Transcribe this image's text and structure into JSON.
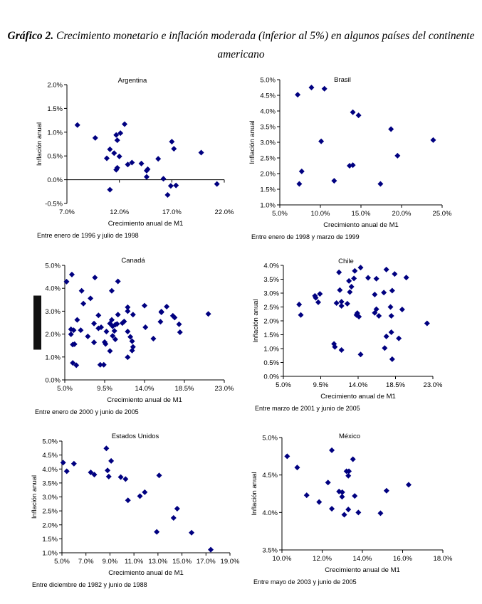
{
  "figure": {
    "label": "Gráfico 2.",
    "title": "Crecimiento monetario e inflación moderada (inferior al 5%) en algunos países del continente americano"
  },
  "colors": {
    "marker": "#000080",
    "axis": "#000000"
  },
  "chart_data": [
    {
      "type": "scatter",
      "title": "Argentina",
      "xlabel": "Crecimiento anual de M1",
      "ylabel": "Inflación anual",
      "note": "Entre enero de 1996 y julio de 1998",
      "xlim": [
        7,
        22
      ],
      "xticks": [
        7,
        12,
        17,
        22
      ],
      "xtick_labels": [
        "7.0%",
        "12.0%",
        "17.0%",
        "22.0%"
      ],
      "ylim": [
        -0.5,
        2.0
      ],
      "yticks": [
        -0.5,
        0,
        0.5,
        1.0,
        1.5,
        2.0
      ],
      "ytick_labels": [
        "-0.5%",
        "0.0%",
        "0.5%",
        "1.0%",
        "1.5%",
        "2.0%"
      ],
      "grid": false,
      "marker": "diamond",
      "points": [
        [
          8.0,
          1.15
        ],
        [
          9.7,
          0.88
        ],
        [
          12.5,
          1.17
        ],
        [
          12.1,
          0.98
        ],
        [
          11.7,
          0.94
        ],
        [
          11.8,
          0.83
        ],
        [
          11.1,
          0.64
        ],
        [
          10.8,
          0.45
        ],
        [
          11.5,
          0.56
        ],
        [
          12.0,
          0.49
        ],
        [
          11.8,
          0.25
        ],
        [
          11.7,
          0.21
        ],
        [
          11.1,
          -0.21
        ],
        [
          12.8,
          0.32
        ],
        [
          13.2,
          0.36
        ],
        [
          14.1,
          0.34
        ],
        [
          14.6,
          0.19
        ],
        [
          14.7,
          0.22
        ],
        [
          14.6,
          0.06
        ],
        [
          15.7,
          0.44
        ],
        [
          16.2,
          0.02
        ],
        [
          16.6,
          -0.32
        ],
        [
          16.9,
          -0.13
        ],
        [
          17.4,
          -0.12
        ],
        [
          17.0,
          0.8
        ],
        [
          17.2,
          0.65
        ],
        [
          19.8,
          0.57
        ],
        [
          21.3,
          -0.09
        ]
      ]
    },
    {
      "type": "scatter",
      "title": "Brasil",
      "xlabel": "Crecimiento anual de M1",
      "ylabel": "Inflación anual",
      "note": "Entre enero de 1998 y marzo de 1999",
      "xlim": [
        5,
        25
      ],
      "xticks": [
        5,
        10,
        15,
        20,
        25
      ],
      "xtick_labels": [
        "5.0%",
        "10.0%",
        "15.0%",
        "20.0%",
        "25.0%"
      ],
      "ylim": [
        1.0,
        5.0
      ],
      "yticks": [
        1.0,
        1.5,
        2.0,
        2.5,
        3.0,
        3.5,
        4.0,
        4.5,
        5.0
      ],
      "ytick_labels": [
        "1.0%",
        "1.5%",
        "2.0%",
        "2.5%",
        "3.0%",
        "3.5%",
        "4.0%",
        "4.5%",
        "5.0%"
      ],
      "grid": false,
      "marker": "diamond",
      "points": [
        [
          7.2,
          4.52
        ],
        [
          8.9,
          4.75
        ],
        [
          10.5,
          4.71
        ],
        [
          14.0,
          3.96
        ],
        [
          14.7,
          3.86
        ],
        [
          18.7,
          3.42
        ],
        [
          10.1,
          3.03
        ],
        [
          23.9,
          3.07
        ],
        [
          19.5,
          2.57
        ],
        [
          13.6,
          2.25
        ],
        [
          14.0,
          2.27
        ],
        [
          7.7,
          2.07
        ],
        [
          11.7,
          1.77
        ],
        [
          7.4,
          1.67
        ],
        [
          17.4,
          1.67
        ]
      ]
    },
    {
      "type": "scatter",
      "title": "Canadá",
      "xlabel": "Crecimiento anual de M1",
      "ylabel": "",
      "note": "Entre enero de 2000 y junio de 2005",
      "xlim": [
        5,
        23
      ],
      "xticks": [
        5,
        9.5,
        14,
        18.5,
        23
      ],
      "xtick_labels": [
        "5.0%",
        "9.5%",
        "14.0%",
        "18.5%",
        "23.0%"
      ],
      "ylim": [
        0,
        5.0
      ],
      "yticks": [
        0,
        1,
        2,
        3,
        4,
        5
      ],
      "ytick_labels": [
        "0.0%",
        "1.0%",
        "2.0%",
        "3.0%",
        "4.0%",
        "5.0%"
      ],
      "grid": false,
      "marker": "diamond",
      "points": [
        [
          5.2,
          4.29
        ],
        [
          5.8,
          4.6
        ],
        [
          8.4,
          4.47
        ],
        [
          11.0,
          4.3
        ],
        [
          6.9,
          3.89
        ],
        [
          10.3,
          3.89
        ],
        [
          7.9,
          3.56
        ],
        [
          7.1,
          3.33
        ],
        [
          14.0,
          3.24
        ],
        [
          16.5,
          3.2
        ],
        [
          12.1,
          3.17
        ],
        [
          12.1,
          3.0
        ],
        [
          15.9,
          2.98
        ],
        [
          15.9,
          2.95
        ],
        [
          21.2,
          2.88
        ],
        [
          12.7,
          2.85
        ],
        [
          11.0,
          2.85
        ],
        [
          8.8,
          2.82
        ],
        [
          17.2,
          2.8
        ],
        [
          17.4,
          2.72
        ],
        [
          6.4,
          2.62
        ],
        [
          10.3,
          2.62
        ],
        [
          15.8,
          2.54
        ],
        [
          11.7,
          2.55
        ],
        [
          11.5,
          2.48
        ],
        [
          8.3,
          2.46
        ],
        [
          10.1,
          2.46
        ],
        [
          10.9,
          2.44
        ],
        [
          10.7,
          2.41
        ],
        [
          17.9,
          2.43
        ],
        [
          10.4,
          2.34
        ],
        [
          14.1,
          2.3
        ],
        [
          9.1,
          2.3
        ],
        [
          8.8,
          2.25
        ],
        [
          5.7,
          2.21
        ],
        [
          6.0,
          2.17
        ],
        [
          6.8,
          2.17
        ],
        [
          10.6,
          2.14
        ],
        [
          9.7,
          2.11
        ],
        [
          12.1,
          2.11
        ],
        [
          18.0,
          2.08
        ],
        [
          5.7,
          1.99
        ],
        [
          7.6,
          1.9
        ],
        [
          10.4,
          1.92
        ],
        [
          12.4,
          1.88
        ],
        [
          15.0,
          1.8
        ],
        [
          10.7,
          1.77
        ],
        [
          12.6,
          1.69
        ],
        [
          8.3,
          1.64
        ],
        [
          9.5,
          1.65
        ],
        [
          9.6,
          1.57
        ],
        [
          6.1,
          1.56
        ],
        [
          5.9,
          1.54
        ],
        [
          12.7,
          1.44
        ],
        [
          12.6,
          1.28
        ],
        [
          10.1,
          1.26
        ],
        [
          12.1,
          0.99
        ],
        [
          5.9,
          0.74
        ],
        [
          6.3,
          0.64
        ],
        [
          9.0,
          0.66
        ],
        [
          9.4,
          0.66
        ]
      ]
    },
    {
      "type": "scatter",
      "title": "Chile",
      "xlabel": "Crecimiento anual de M1",
      "ylabel": "Inflación anual",
      "note": "Entre marzo de 2001 y junio de 2005",
      "xlim": [
        5,
        23
      ],
      "xticks": [
        5,
        9.5,
        14,
        18.5,
        23
      ],
      "xtick_labels": [
        "5.0%",
        "9.5%",
        "14.0%",
        "18.5%",
        "23.0%"
      ],
      "ylim": [
        0,
        4.0
      ],
      "yticks": [
        0,
        0.5,
        1.0,
        1.5,
        2.0,
        2.5,
        3.0,
        3.5,
        4.0
      ],
      "ytick_labels": [
        "0.0%",
        "0.5%",
        "1.0%",
        "1.5%",
        "2.0%",
        "2.5%",
        "3.0%",
        "3.5%",
        "4.0%"
      ],
      "grid": false,
      "marker": "diamond",
      "points": [
        [
          14.3,
          3.92
        ],
        [
          17.4,
          3.85
        ],
        [
          11.7,
          3.75
        ],
        [
          13.6,
          3.8
        ],
        [
          18.4,
          3.69
        ],
        [
          15.2,
          3.55
        ],
        [
          16.2,
          3.52
        ],
        [
          13.5,
          3.53
        ],
        [
          19.8,
          3.56
        ],
        [
          12.9,
          3.44
        ],
        [
          13.2,
          3.23
        ],
        [
          11.8,
          3.11
        ],
        [
          18.1,
          3.09
        ],
        [
          13.0,
          3.04
        ],
        [
          17.1,
          3.02
        ],
        [
          16.0,
          2.95
        ],
        [
          9.4,
          2.97
        ],
        [
          8.8,
          2.9
        ],
        [
          8.9,
          2.83
        ],
        [
          12.0,
          2.69
        ],
        [
          9.2,
          2.67
        ],
        [
          11.4,
          2.64
        ],
        [
          12.7,
          2.62
        ],
        [
          6.9,
          2.59
        ],
        [
          12.0,
          2.54
        ],
        [
          17.9,
          2.5
        ],
        [
          16.2,
          2.42
        ],
        [
          19.3,
          2.41
        ],
        [
          16.0,
          2.29
        ],
        [
          13.9,
          2.28
        ],
        [
          13.8,
          2.21
        ],
        [
          7.1,
          2.21
        ],
        [
          14.1,
          2.15
        ],
        [
          16.5,
          2.18
        ],
        [
          18.0,
          2.18
        ],
        [
          22.3,
          1.91
        ],
        [
          18.0,
          1.59
        ],
        [
          17.4,
          1.44
        ],
        [
          18.9,
          1.37
        ],
        [
          11.1,
          1.17
        ],
        [
          11.2,
          1.06
        ],
        [
          12.0,
          0.95
        ],
        [
          17.2,
          1.02
        ],
        [
          14.3,
          0.79
        ],
        [
          18.1,
          0.62
        ]
      ]
    },
    {
      "type": "scatter",
      "title": "Estados Unidos",
      "xlabel": "Crecimiento anual de M1",
      "ylabel": "Inflación anual",
      "note": "Entre diciembre de 1982 y junio de 1988",
      "xlim": [
        5,
        19
      ],
      "xticks": [
        5,
        7,
        9,
        11,
        13,
        15,
        17,
        19
      ],
      "xtick_labels": [
        "5.0%",
        "7.0%",
        "9.0%",
        "11.0%",
        "13.0%",
        "15.0%",
        "17.0%",
        "19.0%"
      ],
      "ylim": [
        1.0,
        5.0
      ],
      "yticks": [
        1.0,
        1.5,
        2.0,
        2.5,
        3.0,
        3.5,
        4.0,
        4.5,
        5.0
      ],
      "ytick_labels": [
        "1.0%",
        "1.5%",
        "2.0%",
        "2.5%",
        "3.0%",
        "3.5%",
        "4.0%",
        "4.5%",
        "5.0%"
      ],
      "grid": false,
      "marker": "diamond",
      "points": [
        [
          5.1,
          4.23
        ],
        [
          5.4,
          3.92
        ],
        [
          6.0,
          4.19
        ],
        [
          7.4,
          3.88
        ],
        [
          7.7,
          3.8
        ],
        [
          8.7,
          4.74
        ],
        [
          9.1,
          4.29
        ],
        [
          8.8,
          3.95
        ],
        [
          8.9,
          3.73
        ],
        [
          9.9,
          3.71
        ],
        [
          10.3,
          3.64
        ],
        [
          13.1,
          3.77
        ],
        [
          11.9,
          3.17
        ],
        [
          11.5,
          3.03
        ],
        [
          10.5,
          2.88
        ],
        [
          14.6,
          2.58
        ],
        [
          14.3,
          2.25
        ],
        [
          12.9,
          1.75
        ],
        [
          15.8,
          1.72
        ],
        [
          17.4,
          1.11
        ]
      ]
    },
    {
      "type": "scatter",
      "title": "México",
      "xlabel": "Crecimiento anual de M1",
      "ylabel": "Inflación anual",
      "note": "Entre mayo de 2003 y junio de 2005",
      "xlim": [
        10,
        18
      ],
      "xticks": [
        10,
        12,
        14,
        16,
        18
      ],
      "xtick_labels": [
        "10.0%",
        "12.0%",
        "14.0%",
        "16.0%",
        "18.0%"
      ],
      "ylim": [
        3.5,
        5.0
      ],
      "yticks": [
        3.5,
        4.0,
        4.5,
        5.0
      ],
      "ytick_labels": [
        "3.5%",
        "4.0%",
        "4.5%",
        "5.0%"
      ],
      "grid": false,
      "marker": "diamond",
      "points": [
        [
          10.26,
          4.75
        ],
        [
          10.76,
          4.6
        ],
        [
          12.48,
          4.83
        ],
        [
          13.53,
          4.71
        ],
        [
          13.21,
          4.55
        ],
        [
          13.33,
          4.55
        ],
        [
          13.3,
          4.49
        ],
        [
          12.29,
          4.4
        ],
        [
          16.3,
          4.37
        ],
        [
          15.2,
          4.29
        ],
        [
          12.84,
          4.28
        ],
        [
          13.0,
          4.27
        ],
        [
          12.99,
          4.21
        ],
        [
          13.62,
          4.22
        ],
        [
          11.23,
          4.23
        ],
        [
          11.85,
          4.14
        ],
        [
          12.48,
          4.05
        ],
        [
          13.3,
          4.04
        ],
        [
          13.8,
          4.0
        ],
        [
          14.9,
          3.99
        ],
        [
          13.1,
          3.97
        ]
      ]
    }
  ]
}
